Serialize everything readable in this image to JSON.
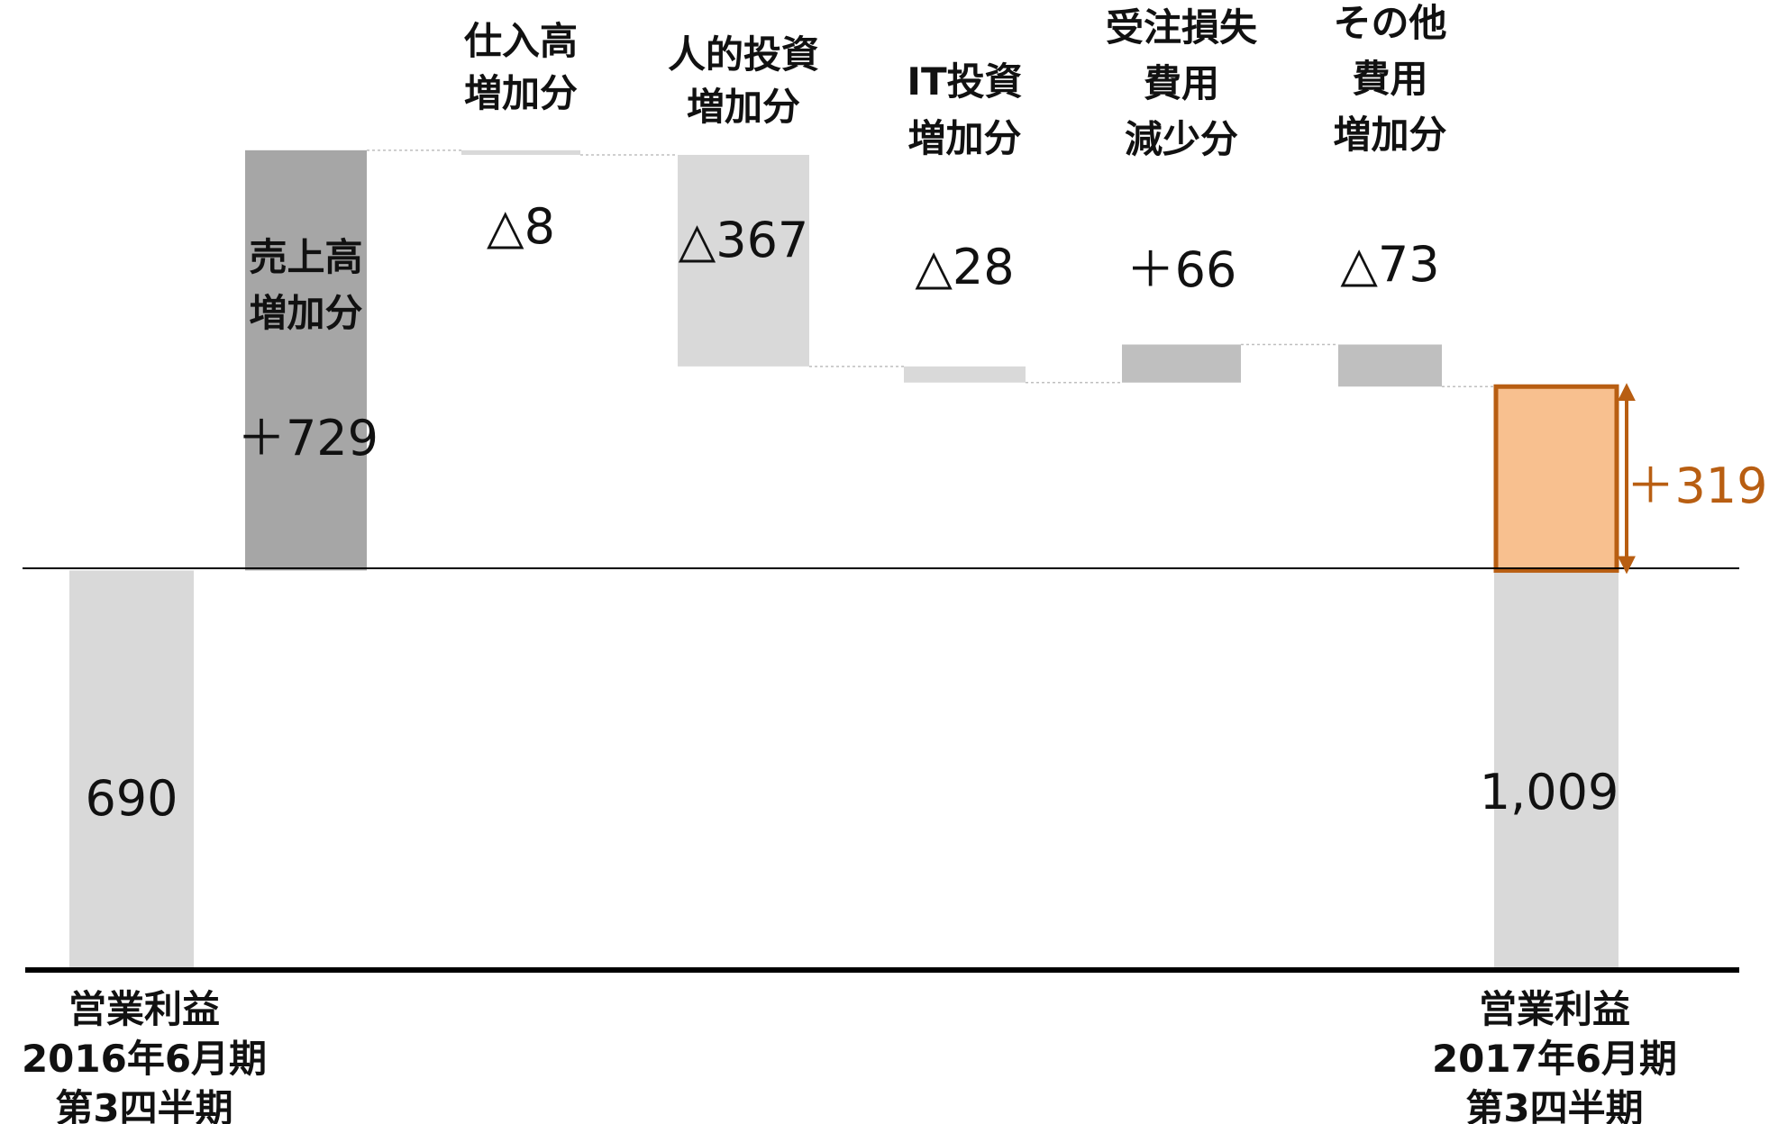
{
  "chart_data": {
    "type": "waterfall",
    "unit": "",
    "ylim": [
      0,
      1700
    ],
    "start": {
      "label_lines": [
        "営業利益",
        "2016年6月期",
        "第3四半期"
      ],
      "value": 690,
      "display": "690"
    },
    "steps": [
      {
        "label_lines": [
          "売上高",
          "増加分"
        ],
        "value": 729,
        "display": "＋729"
      },
      {
        "label_lines": [
          "仕入高",
          "増加分"
        ],
        "value": -8,
        "display": "△8"
      },
      {
        "label_lines": [
          "人的投資",
          "増加分"
        ],
        "value": -367,
        "display": "△367"
      },
      {
        "label_lines": [
          "IT投資",
          "増加分"
        ],
        "value": -28,
        "display": "△28"
      },
      {
        "label_lines": [
          "受注損失",
          "費用",
          "減少分"
        ],
        "value": 66,
        "display": "＋66"
      },
      {
        "label_lines": [
          "その他",
          "費用",
          "増加分"
        ],
        "value": -73,
        "display": "△73"
      }
    ],
    "end": {
      "label_lines": [
        "営業利益",
        "2017年6月期",
        "第3四半期"
      ],
      "value": 1009,
      "display": "1,009"
    },
    "difference": {
      "value": 319,
      "display": "＋319"
    },
    "colors": {
      "total_bar": "#d9d9d9",
      "sales_increase_bar": "#a6a6a6",
      "small_decrease_bar": "#d9d9d9",
      "mid_bar": "#bfbfbf",
      "difference_fill": "#f8c08f",
      "difference_stroke": "#b85e12",
      "difference_text": "#b85e12",
      "axis": "#000000",
      "connector": "#bfbfbf"
    }
  }
}
